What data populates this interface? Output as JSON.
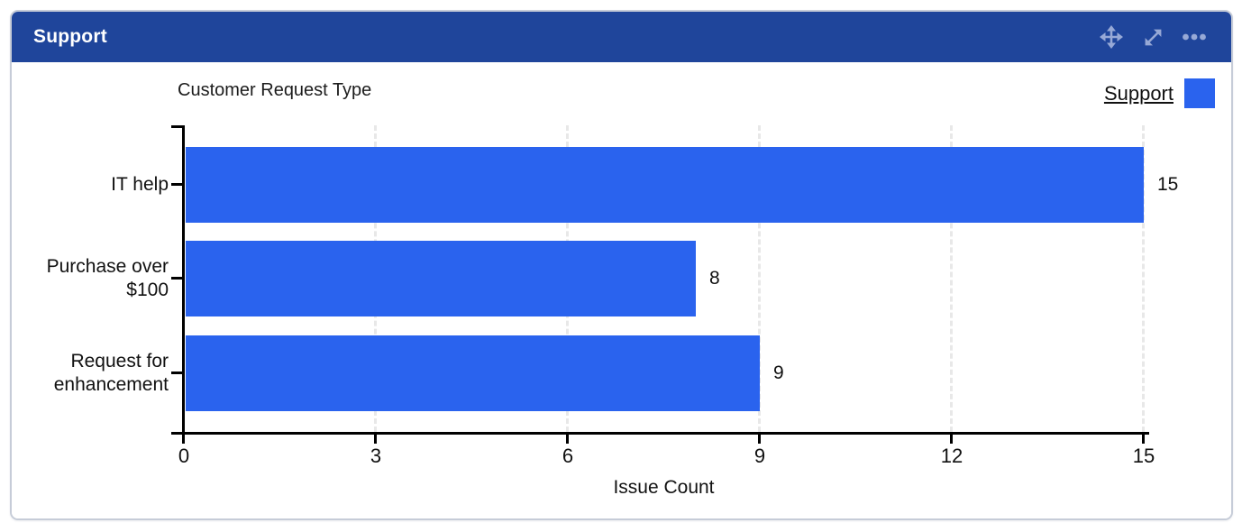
{
  "header": {
    "title": "Support",
    "icons": [
      {
        "name": "move-icon"
      },
      {
        "name": "expand-icon"
      },
      {
        "name": "more-icon"
      }
    ]
  },
  "legend": {
    "label": "Support",
    "swatch_color": "#2a63ee"
  },
  "chart_data": {
    "type": "bar",
    "orientation": "horizontal",
    "title": "Customer Request Type",
    "xlabel": "Issue Count",
    "categories": [
      "IT help",
      "Purchase over $100",
      "Request for enhancement"
    ],
    "category_lines": [
      [
        "IT help"
      ],
      [
        "Purchase over",
        "$100"
      ],
      [
        "Request for",
        "enhancement"
      ]
    ],
    "series": [
      {
        "name": "Support",
        "values": [
          15,
          8,
          9
        ]
      }
    ],
    "x_ticks": [
      0,
      3,
      6,
      9,
      12,
      15
    ],
    "xlim": [
      0,
      15
    ],
    "grid": "vertical-dashed",
    "legend_position": "top-right",
    "bar_color": "#2a63ee"
  },
  "colors": {
    "header_bg": "#1f459b",
    "bar": "#2a63ee",
    "icon": "#97a9d6",
    "border": "#c6ccd8",
    "grid": "#e8e8e8",
    "axis": "#000000"
  }
}
